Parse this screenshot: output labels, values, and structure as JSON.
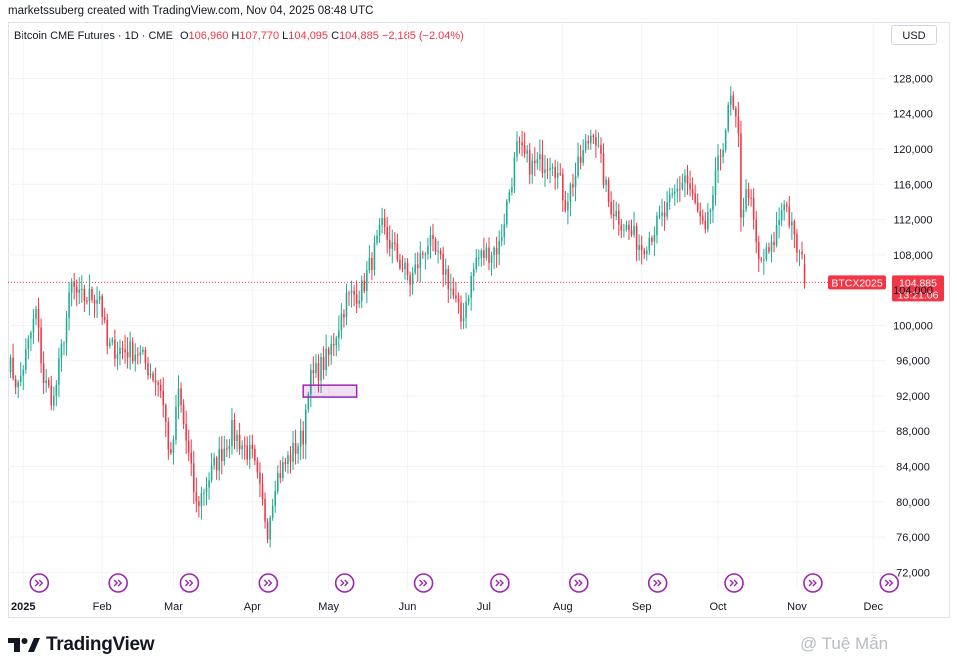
{
  "header": {
    "text": "marketssuberg created with TradingView.com, Nov 04, 2025 08:48 UTC"
  },
  "legend": {
    "symbol": "Bitcoin CME Futures · 1D · CME",
    "o_label": "O",
    "o_value": "106,960",
    "h_label": "H",
    "h_value": "107,770",
    "l_label": "L",
    "l_value": "104,095",
    "c_label": "C",
    "c_value": "104,885",
    "change": "−2,185 (−2.04%)"
  },
  "currency_button": "USD",
  "colors": {
    "up": "#22ab94",
    "down": "#f23645",
    "axis_text": "#131722",
    "highlight": "#9c27b0"
  },
  "price_tag": {
    "symbol": "BTCX2025",
    "price": "104,885",
    "countdown": "13:21:06"
  },
  "footer": {
    "brand": "TradingView",
    "watermark": "@ Tuệ Mẫn"
  },
  "chart_data": {
    "type": "candlestick",
    "title": "Bitcoin CME Futures · 1D · CME",
    "y_ticks": [
      72000,
      76000,
      80000,
      84000,
      88000,
      92000,
      96000,
      100000,
      104000,
      108000,
      112000,
      116000,
      120000,
      124000,
      128000
    ],
    "y_tick_labels": [
      "72,000",
      "76,000",
      "80,000",
      "84,000",
      "88,000",
      "92,000",
      "96,000",
      "100,000",
      "104,000",
      "108,000",
      "112,000",
      "116,000",
      "120,000",
      "124,000",
      "128,000"
    ],
    "ylim": [
      70000,
      131000
    ],
    "x_ticks": [
      "2025",
      "Feb",
      "Mar",
      "Apr",
      "May",
      "Jun",
      "Jul",
      "Aug",
      "Sep",
      "Oct",
      "Nov",
      "Dec"
    ],
    "x_tick_dates": [
      "2025-01-01",
      "2025-02-01",
      "2025-03-01",
      "2025-04-01",
      "2025-05-01",
      "2025-06-01",
      "2025-07-01",
      "2025-08-01",
      "2025-09-01",
      "2025-10-01",
      "2025-11-01",
      "2025-12-01"
    ],
    "xlim": [
      "2024-12-26",
      "2025-12-06"
    ],
    "last_price": 104885,
    "event_markers": [
      "2025-01-01",
      "2025-02-01",
      "2025-03-01",
      "2025-04-01",
      "2025-05-01",
      "2025-06-01",
      "2025-07-01",
      "2025-08-01",
      "2025-09-01",
      "2025-10-01",
      "2025-11-01",
      "2025-12-01"
    ],
    "highlight_box": {
      "date_start": "2025-04-21",
      "date_end": "2025-05-12",
      "y_low": 92100,
      "y_high": 93000
    },
    "waypoints": [
      {
        "date": "2024-12-26",
        "close": 96000
      },
      {
        "date": "2024-12-30",
        "close": 93000
      },
      {
        "date": "2025-01-06",
        "close": 101500
      },
      {
        "date": "2025-01-09",
        "close": 93800
      },
      {
        "date": "2025-01-13",
        "close": 91500
      },
      {
        "date": "2025-01-20",
        "close": 104500
      },
      {
        "date": "2025-01-23",
        "close": 103000
      },
      {
        "date": "2025-01-31",
        "close": 103500
      },
      {
        "date": "2025-02-03",
        "close": 97500
      },
      {
        "date": "2025-02-15",
        "close": 97000
      },
      {
        "date": "2025-02-24",
        "close": 93000
      },
      {
        "date": "2025-02-28",
        "close": 84500
      },
      {
        "date": "2025-03-03",
        "close": 92500
      },
      {
        "date": "2025-03-10",
        "close": 79500
      },
      {
        "date": "2025-03-17",
        "close": 84000
      },
      {
        "date": "2025-03-24",
        "close": 88000
      },
      {
        "date": "2025-04-01",
        "close": 85000
      },
      {
        "date": "2025-04-07",
        "close": 77000
      },
      {
        "date": "2025-04-10",
        "close": 82500
      },
      {
        "date": "2025-04-21",
        "close": 87500
      },
      {
        "date": "2025-04-23",
        "close": 93500
      },
      {
        "date": "2025-05-01",
        "close": 96500
      },
      {
        "date": "2025-05-08",
        "close": 103000
      },
      {
        "date": "2025-05-14",
        "close": 104000
      },
      {
        "date": "2025-05-22",
        "close": 111000
      },
      {
        "date": "2025-06-02",
        "close": 105000
      },
      {
        "date": "2025-06-09",
        "close": 109500
      },
      {
        "date": "2025-06-16",
        "close": 106000
      },
      {
        "date": "2025-06-22",
        "close": 100500
      },
      {
        "date": "2025-06-28",
        "close": 107500
      },
      {
        "date": "2025-07-07",
        "close": 109000
      },
      {
        "date": "2025-07-14",
        "close": 120000
      },
      {
        "date": "2025-07-20",
        "close": 118000
      },
      {
        "date": "2025-07-28",
        "close": 119000
      },
      {
        "date": "2025-08-02",
        "close": 114000
      },
      {
        "date": "2025-08-13",
        "close": 122500
      },
      {
        "date": "2025-08-19",
        "close": 114000
      },
      {
        "date": "2025-08-26",
        "close": 111000
      },
      {
        "date": "2025-09-01",
        "close": 109000
      },
      {
        "date": "2025-09-10",
        "close": 112500
      },
      {
        "date": "2025-09-18",
        "close": 117000
      },
      {
        "date": "2025-09-26",
        "close": 110000
      },
      {
        "date": "2025-10-01",
        "close": 118000
      },
      {
        "date": "2025-10-06",
        "close": 125500
      },
      {
        "date": "2025-10-09",
        "close": 121000
      },
      {
        "date": "2025-10-10",
        "close": 113000
      },
      {
        "date": "2025-10-13",
        "close": 115500
      },
      {
        "date": "2025-10-17",
        "close": 107000
      },
      {
        "date": "2025-10-22",
        "close": 108500
      },
      {
        "date": "2025-10-27",
        "close": 114500
      },
      {
        "date": "2025-10-31",
        "close": 109500
      },
      {
        "date": "2025-11-03",
        "close": 107070
      },
      {
        "date": "2025-11-04",
        "close": 104885
      }
    ]
  }
}
